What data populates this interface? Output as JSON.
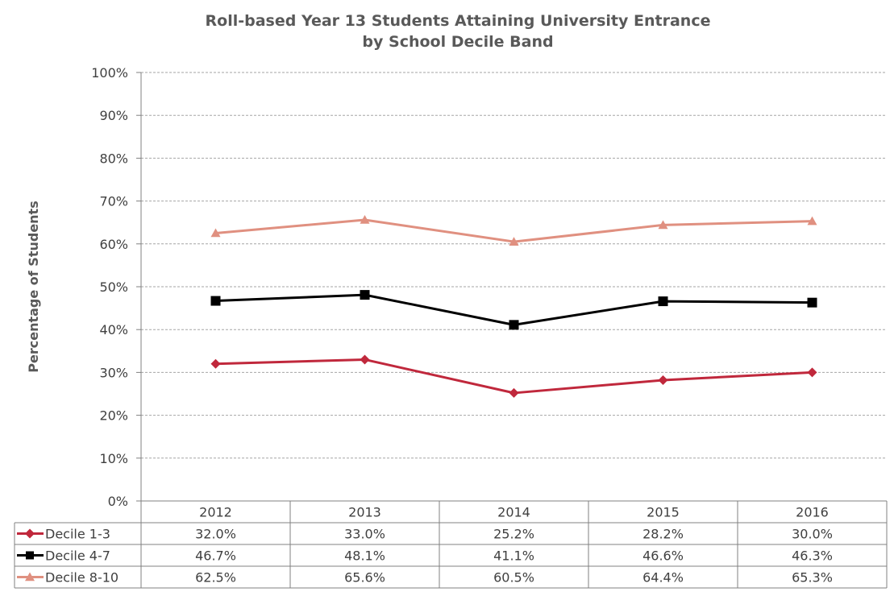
{
  "chart_data": {
    "type": "line",
    "title": "Roll-based Year 13 Students Attaining University Entrance",
    "subtitle": "by School Decile Band",
    "ylabel": "Percentage of Students",
    "xlabel": "",
    "ylim": [
      0,
      100
    ],
    "yticks": [
      "0%",
      "10%",
      "20%",
      "30%",
      "40%",
      "50%",
      "60%",
      "70%",
      "80%",
      "90%",
      "100%"
    ],
    "categories": [
      "2012",
      "2013",
      "2014",
      "2015",
      "2016"
    ],
    "grid": true,
    "legend": "data-table",
    "series": [
      {
        "name": "Decile 1-3",
        "values": [
          32.0,
          33.0,
          25.2,
          28.2,
          30.0
        ],
        "labels": [
          "32.0%",
          "33.0%",
          "25.2%",
          "28.2%",
          "30.0%"
        ],
        "color": "#c0283c",
        "marker": "diamond"
      },
      {
        "name": "Decile 4-7",
        "values": [
          46.7,
          48.1,
          41.1,
          46.6,
          46.3
        ],
        "labels": [
          "46.7%",
          "48.1%",
          "41.1%",
          "46.6%",
          "46.3%"
        ],
        "color": "#000000",
        "marker": "square"
      },
      {
        "name": "Decile 8-10",
        "values": [
          62.5,
          65.6,
          60.5,
          64.4,
          65.3
        ],
        "labels": [
          "62.5%",
          "65.6%",
          "60.5%",
          "64.4%",
          "65.3%"
        ],
        "color": "#e09080",
        "marker": "triangle"
      }
    ]
  }
}
